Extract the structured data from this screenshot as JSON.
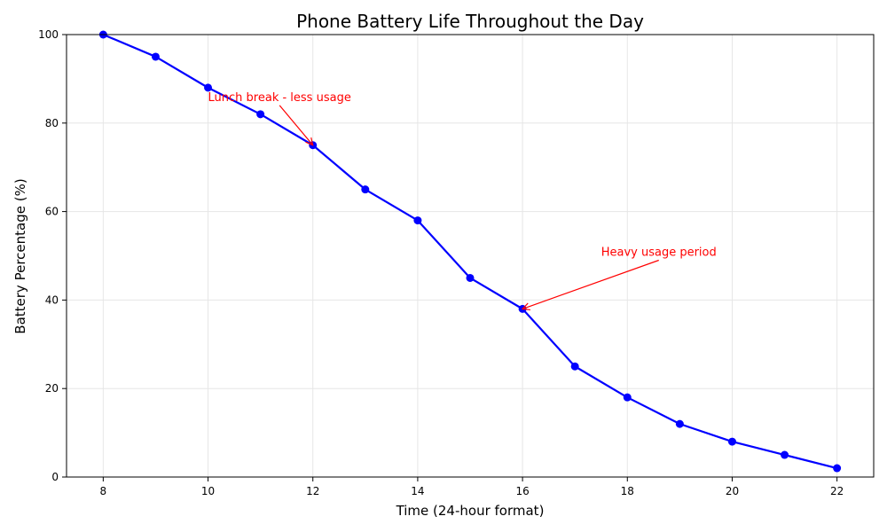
{
  "chart_data": {
    "type": "line",
    "title": "Phone Battery Life Throughout the Day",
    "xlabel": "Time (24-hour format)",
    "ylabel": "Battery Percentage (%)",
    "xlim": [
      7.3,
      22.7
    ],
    "ylim": [
      0,
      100
    ],
    "x_ticks": [
      8,
      10,
      12,
      14,
      16,
      18,
      20,
      22
    ],
    "y_ticks": [
      0,
      20,
      40,
      60,
      80,
      100
    ],
    "grid": true,
    "series": [
      {
        "color": "#0000ff",
        "marker": "circle",
        "x": [
          8,
          9,
          10,
          11,
          12,
          13,
          14,
          15,
          16,
          17,
          18,
          19,
          20,
          21,
          22
        ],
        "y": [
          100,
          95,
          88,
          82,
          75,
          65,
          58,
          45,
          38,
          25,
          18,
          12,
          8,
          5,
          2
        ]
      }
    ],
    "annotations": [
      {
        "text": "Lunch break - less usage",
        "x": 12,
        "y": 75,
        "text_x": 10,
        "text_y": 85,
        "color": "#ff0000"
      },
      {
        "text": "Heavy usage period",
        "x": 16,
        "y": 38,
        "text_x": 17.5,
        "text_y": 50,
        "color": "#ff0000"
      }
    ]
  }
}
